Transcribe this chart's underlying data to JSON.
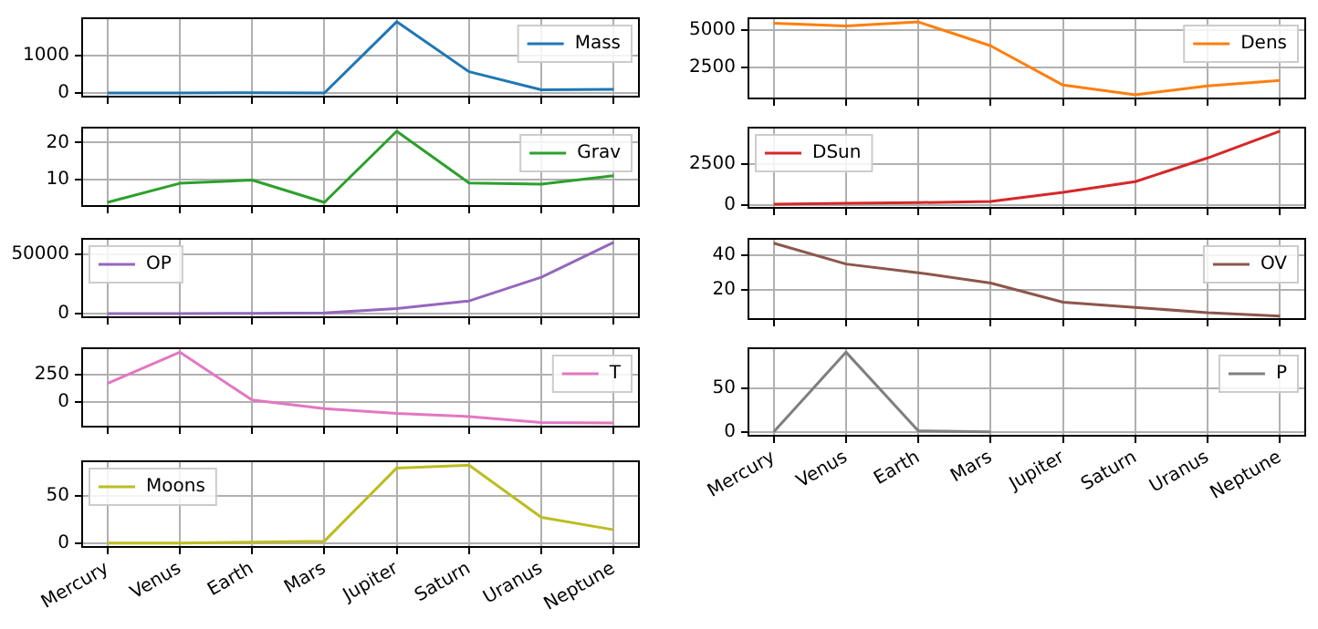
{
  "chart_data": [
    {
      "type": "line",
      "categories": [
        null,
        null,
        null,
        null,
        null,
        null,
        null,
        null
      ],
      "series": [
        {
          "name": "Mass",
          "color": "#1f77b4",
          "values": [
            0,
            5,
            6,
            1,
            1900,
            570,
            87,
            100
          ]
        }
      ],
      "ylim": [
        -95,
        1993
      ],
      "yticks": [
        0,
        1000
      ],
      "grid": true,
      "legend": "top right",
      "tick_labels": "y"
    },
    {
      "type": "line",
      "categories": [
        null,
        null,
        null,
        null,
        null,
        null,
        null,
        null
      ],
      "series": [
        {
          "name": "Dens",
          "color": "#ff7f0e",
          "values": [
            5430,
            5240,
            5510,
            3930,
            1330,
            690,
            1270,
            1640
          ]
        }
      ],
      "ylim": [
        446,
        5755
      ],
      "yticks": [
        2500,
        5000
      ],
      "grid": true,
      "legend": "top right",
      "tick_labels": "y"
    },
    {
      "type": "line",
      "categories": [
        null,
        null,
        null,
        null,
        null,
        null,
        null,
        null
      ],
      "series": [
        {
          "name": "Grav",
          "color": "#2ca02c",
          "values": [
            3.7,
            8.9,
            9.8,
            3.7,
            23.1,
            9.0,
            8.7,
            11.0
          ]
        }
      ],
      "ylim": [
        2.7,
        24.1
      ],
      "yticks": [
        10,
        20
      ],
      "grid": true,
      "legend": "top right",
      "tick_labels": "y"
    },
    {
      "type": "line",
      "categories": [
        null,
        null,
        null,
        null,
        null,
        null,
        null,
        null
      ],
      "series": [
        {
          "name": "DSun",
          "color": "#d62728",
          "values": [
            60,
            110,
            150,
            230,
            780,
            1430,
            2870,
            4500
          ]
        }
      ],
      "ylim": [
        -164,
        4717
      ],
      "yticks": [
        0,
        2500
      ],
      "grid": true,
      "legend": "top left",
      "tick_labels": "y"
    },
    {
      "type": "line",
      "categories": [
        null,
        null,
        null,
        null,
        null,
        null,
        null,
        null
      ],
      "series": [
        {
          "name": "OP",
          "color": "#9467bd",
          "values": [
            100,
            200,
            400,
            700,
            4300,
            10700,
            30600,
            59800
          ]
        }
      ],
      "ylim": [
        -2898,
        62786
      ],
      "yticks": [
        0,
        50000
      ],
      "grid": true,
      "legend": "top left",
      "tick_labels": "y"
    },
    {
      "type": "line",
      "categories": [
        null,
        null,
        null,
        null,
        null,
        null,
        null,
        null
      ],
      "series": [
        {
          "name": "OV",
          "color": "#8c564b",
          "values": [
            47,
            35,
            30,
            24,
            13,
            10,
            7,
            5
          ]
        }
      ],
      "ylim": [
        3.3,
        49.5
      ],
      "yticks": [
        20,
        40
      ],
      "grid": true,
      "legend": "top right",
      "tick_labels": "y"
    },
    {
      "type": "line",
      "categories": [
        null,
        null,
        null,
        null,
        null,
        null,
        null,
        null
      ],
      "series": [
        {
          "name": "T",
          "color": "#e377c2",
          "values": [
            170,
            460,
            15,
            -65,
            -110,
            -140,
            -195,
            -200
          ]
        }
      ],
      "ylim": [
        -233,
        497
      ],
      "yticks": [
        0,
        250
      ],
      "grid": true,
      "legend": "top right",
      "tick_labels": "y"
    },
    {
      "type": "line",
      "categories": [
        "Mercury",
        "Venus",
        "Earth",
        "Mars",
        "Jupiter",
        "Saturn",
        "Uranus",
        "Neptune"
      ],
      "series": [
        {
          "name": "P",
          "color": "#7f7f7f",
          "values": [
            0,
            92,
            1,
            0,
            null,
            null,
            null,
            null
          ]
        }
      ],
      "ylim": [
        -4.6,
        96.6
      ],
      "yticks": [
        0,
        50
      ],
      "grid": true,
      "legend": "top right"
    },
    {
      "type": "line",
      "categories": [
        "Mercury",
        "Venus",
        "Earth",
        "Mars",
        "Jupiter",
        "Saturn",
        "Uranus",
        "Neptune"
      ],
      "series": [
        {
          "name": "Moons",
          "color": "#bcbd22",
          "values": [
            0,
            0,
            1,
            2,
            79,
            82,
            27,
            14
          ]
        }
      ],
      "ylim": [
        -4.1,
        86.1
      ],
      "yticks": [
        0,
        50
      ],
      "grid": true,
      "legend": "top left"
    }
  ]
}
